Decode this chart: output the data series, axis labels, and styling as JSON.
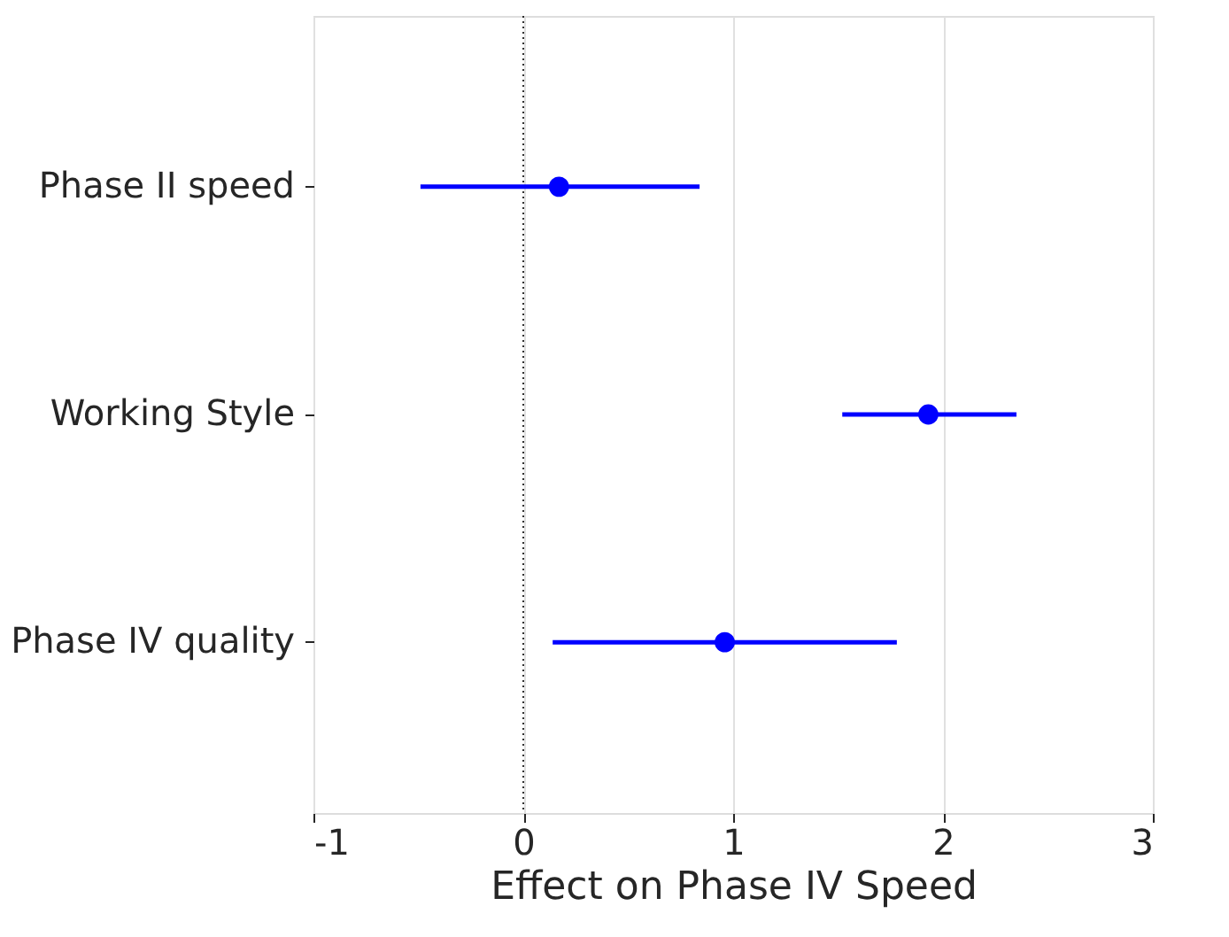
{
  "chart_data": {
    "type": "scatter",
    "orientation": "horizontal",
    "xlabel": "Effect on Phase IV Speed",
    "categories": [
      "Phase II speed",
      "Working Style",
      "Phase IV quality"
    ],
    "series": [
      {
        "color": "#0000ff",
        "values": [
          0.17,
          1.93,
          0.96
        ],
        "errors": [
          [
            -0.49,
            0.84
          ],
          [
            1.52,
            2.35
          ],
          [
            0.14,
            1.78
          ]
        ]
      }
    ],
    "xlim": [
      -1,
      3
    ],
    "xticks": [
      -1,
      0,
      1,
      2,
      3
    ],
    "grid": "x",
    "marker": "circle",
    "legend": false,
    "ref_lines": [
      {
        "axis": "x",
        "value": 0,
        "color": "#000000",
        "line_style": "dotted"
      }
    ]
  }
}
